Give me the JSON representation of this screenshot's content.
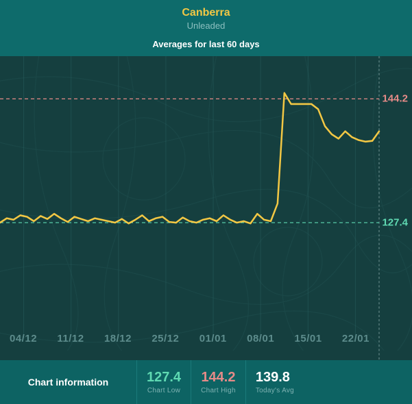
{
  "header": {
    "location": "Canberra",
    "location_color": "#f2c744",
    "fuel": "Unleaded",
    "fuel_color": "#8cc0c0"
  },
  "subtitle": "Averages for last 60 days",
  "chart": {
    "type": "line",
    "background_color": "#153f3f",
    "road_color": "#2a6060",
    "line_color": "#f2c744",
    "line_width": 2.5,
    "grid_color": "#2a6060",
    "grid_opacity": 0.5,
    "right_margin": 48,
    "x_categories": [
      "04/12",
      "11/12",
      "18/12",
      "25/12",
      "01/01",
      "08/01",
      "15/01",
      "22/01"
    ],
    "x_label_color": "#5d8c8c",
    "series": [
      127.4,
      128.0,
      127.8,
      128.4,
      128.2,
      127.6,
      128.3,
      127.9,
      128.6,
      128.0,
      127.5,
      128.2,
      127.9,
      127.6,
      128.0,
      127.8,
      127.6,
      127.4,
      127.9,
      127.3,
      127.8,
      128.4,
      127.6,
      128.0,
      128.2,
      127.5,
      127.4,
      128.1,
      127.6,
      127.4,
      127.8,
      128.0,
      127.6,
      128.4,
      127.8,
      127.4,
      127.6,
      127.3,
      128.6,
      127.8,
      127.6,
      130.0,
      145.0,
      143.5,
      143.5,
      143.5,
      143.5,
      142.8,
      140.5,
      139.4,
      138.8,
      139.8,
      139.0,
      138.6,
      138.4,
      138.5,
      139.8
    ],
    "ylim": [
      112,
      150
    ],
    "hlines": [
      {
        "value": 144.2,
        "color": "#e68b88",
        "label": "144.2",
        "label_color": "#e68b88"
      },
      {
        "value": 127.4,
        "color": "#5fd9b2",
        "label": "127.4",
        "label_color": "#5fd9b2"
      }
    ],
    "x_label_band_height": 34
  },
  "footer": {
    "title": "Chart information",
    "stats": [
      {
        "value": "127.4",
        "label": "Chart Low",
        "color": "#5fd9b2"
      },
      {
        "value": "144.2",
        "label": "Chart High",
        "color": "#e68b88"
      },
      {
        "value": "139.8",
        "label": "Today's Avg",
        "color": "#ffffff"
      }
    ]
  },
  "layout": {
    "page_bg": "#0e6b6b",
    "footer_bg": "#0d6363",
    "footer_divider": "#1a7a7a",
    "footer_sub_color": "#7fb3b3"
  }
}
